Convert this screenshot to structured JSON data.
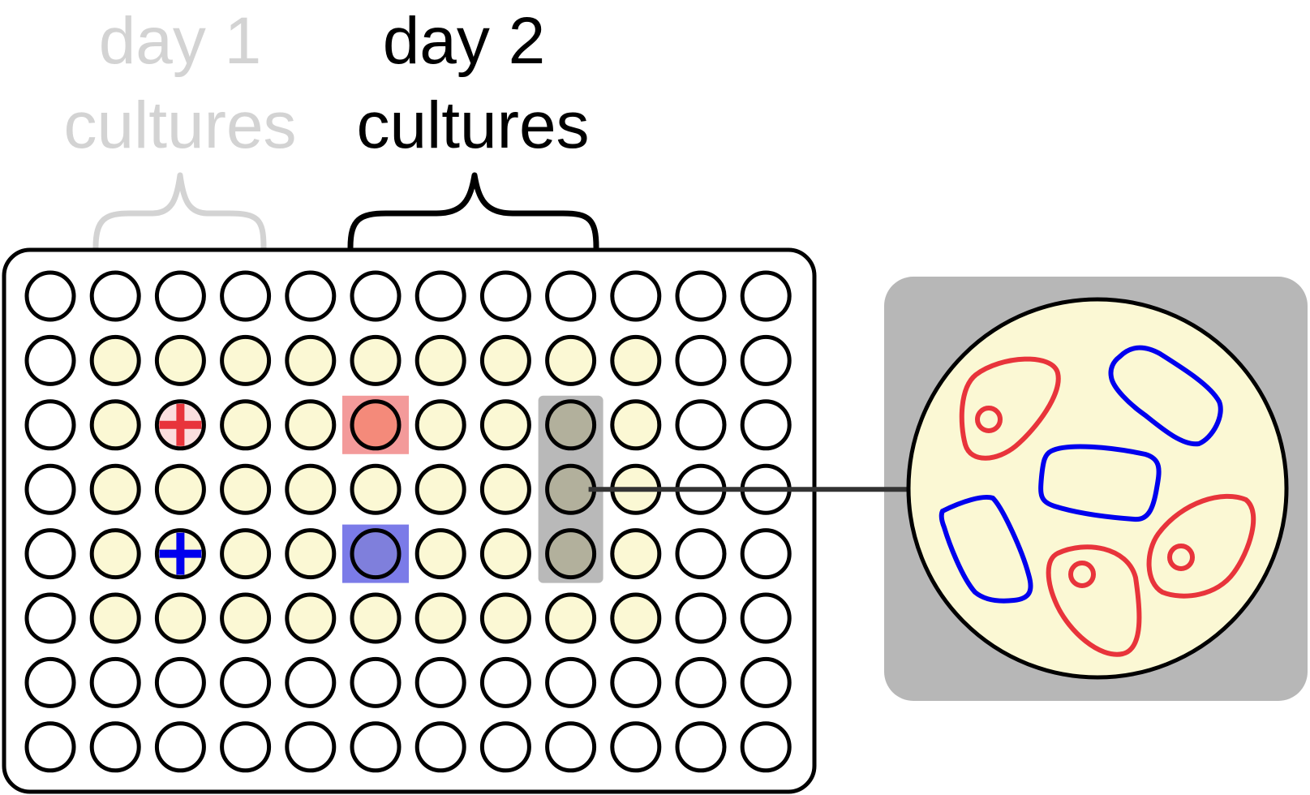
{
  "labels": {
    "day1_line1": "day 1",
    "day1_line2": "cultures",
    "day2_line1": "day 2",
    "day2_line2": "cultures"
  },
  "plate": {
    "rows": 8,
    "cols": 12,
    "filled_rows": [
      1,
      2,
      3,
      4,
      5
    ],
    "filled_cols": [
      1,
      2,
      3,
      4,
      5,
      6,
      7,
      8,
      9
    ],
    "red_marked_well": [
      2,
      2
    ],
    "blue_marked_well": [
      4,
      2
    ],
    "red_highlight_well": [
      2,
      5
    ],
    "blue_highlight_well": [
      4,
      5
    ],
    "gray_highlight_column": 8,
    "gray_highlight_rows": [
      2,
      3,
      4
    ],
    "zoom_source_well": [
      3,
      8
    ]
  },
  "cells": {
    "red_count": 3,
    "blue_count": 3
  },
  "colors": {
    "culture_fill": "#fbf8d4",
    "faded_label": "#d3d3d3",
    "red": "#e8343b",
    "blue": "#0000ee",
    "red_highlight": "#f39a9a",
    "blue_highlight": "#7b7be8",
    "gray_highlight": "#b9b9b9",
    "zoom_background": "#b7b7b7"
  }
}
